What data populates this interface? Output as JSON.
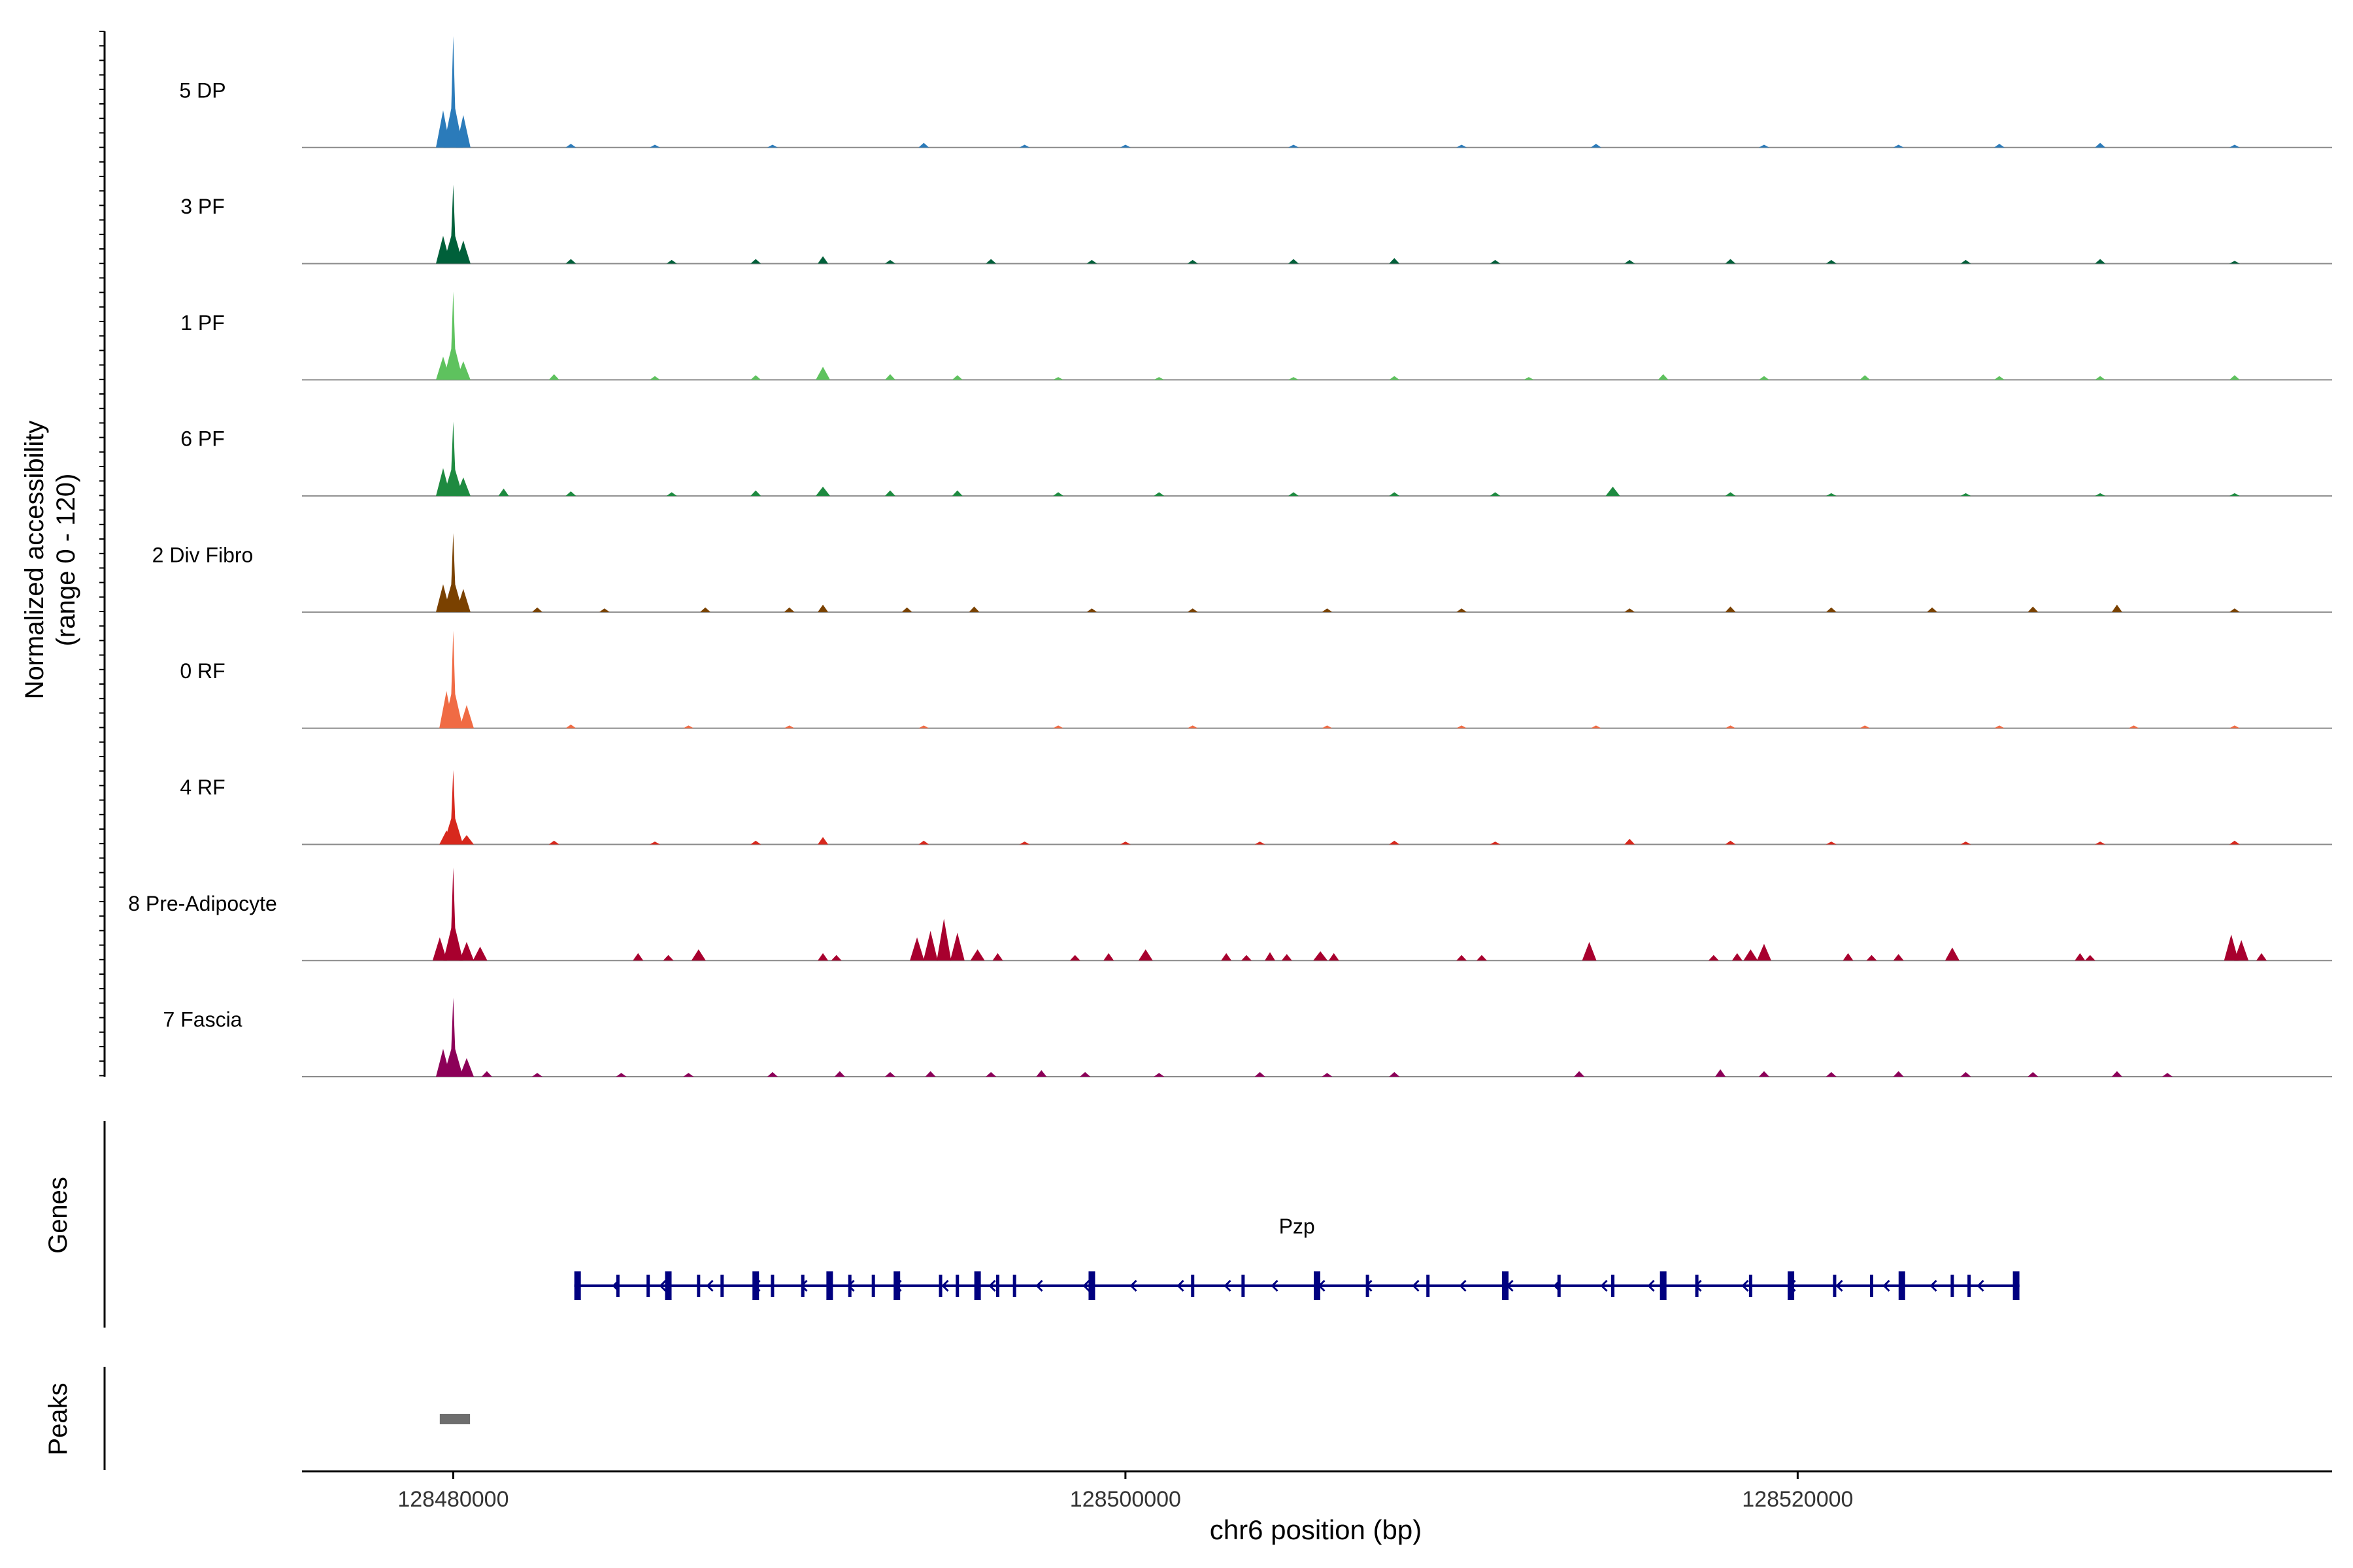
{
  "chart_data": {
    "type": "area",
    "title": "",
    "ylabel_line1": "Normalized accessibility",
    "ylabel_line2": "(range 0 - 120)",
    "xlabel": "chr6 position (bp)",
    "ylim": [
      0,
      120
    ],
    "xlim": [
      128475500,
      128535900
    ],
    "x_ticks": [
      128480000,
      128500000,
      128520000
    ],
    "x_tick_labels": [
      "128480000",
      "128500000",
      "128520000"
    ],
    "tracks": [
      {
        "name": "5 DP",
        "color": "#2b7bba",
        "main_peak": 120,
        "peaks": [
          [
            128480000,
            120
          ],
          [
            128479700,
            40
          ],
          [
            128480300,
            35
          ],
          [
            128483500,
            4
          ],
          [
            128486000,
            3
          ],
          [
            128489500,
            3
          ],
          [
            128494000,
            5
          ],
          [
            128497000,
            3
          ],
          [
            128500000,
            3
          ],
          [
            128505000,
            3
          ],
          [
            128510000,
            3
          ],
          [
            128514000,
            4
          ],
          [
            128519000,
            3
          ],
          [
            128523000,
            3
          ],
          [
            128526000,
            4
          ],
          [
            128529000,
            5
          ],
          [
            128533000,
            3
          ]
        ]
      },
      {
        "name": "3 PF",
        "color": "#00603a",
        "main_peak": 85,
        "peaks": [
          [
            128480000,
            85
          ],
          [
            128479700,
            30
          ],
          [
            128480300,
            25
          ],
          [
            128483500,
            5
          ],
          [
            128486500,
            4
          ],
          [
            128489000,
            5
          ],
          [
            128491000,
            8
          ],
          [
            128493000,
            4
          ],
          [
            128496000,
            5
          ],
          [
            128499000,
            4
          ],
          [
            128502000,
            4
          ],
          [
            128505000,
            5
          ],
          [
            128508000,
            6
          ],
          [
            128511000,
            4
          ],
          [
            128515000,
            4
          ],
          [
            128518000,
            5
          ],
          [
            128521000,
            4
          ],
          [
            128525000,
            4
          ],
          [
            128529000,
            5
          ],
          [
            128533000,
            3
          ]
        ]
      },
      {
        "name": "1 PF",
        "color": "#5ec25e",
        "main_peak": 95,
        "peaks": [
          [
            128480000,
            95
          ],
          [
            128479700,
            25
          ],
          [
            128480300,
            20
          ],
          [
            128483000,
            6
          ],
          [
            128486000,
            4
          ],
          [
            128489000,
            5
          ],
          [
            128491000,
            14
          ],
          [
            128493000,
            6
          ],
          [
            128495000,
            5
          ],
          [
            128498000,
            3
          ],
          [
            128501000,
            3
          ],
          [
            128505000,
            3
          ],
          [
            128508000,
            4
          ],
          [
            128512000,
            3
          ],
          [
            128516000,
            6
          ],
          [
            128519000,
            4
          ],
          [
            128522000,
            5
          ],
          [
            128526000,
            4
          ],
          [
            128529000,
            4
          ],
          [
            128533000,
            5
          ]
        ]
      },
      {
        "name": "6 PF",
        "color": "#1e8a40",
        "main_peak": 80,
        "peaks": [
          [
            128480000,
            80
          ],
          [
            128479700,
            30
          ],
          [
            128480300,
            20
          ],
          [
            128481500,
            8
          ],
          [
            128483500,
            5
          ],
          [
            128486500,
            4
          ],
          [
            128489000,
            6
          ],
          [
            128491000,
            10
          ],
          [
            128493000,
            6
          ],
          [
            128495000,
            6
          ],
          [
            128498000,
            4
          ],
          [
            128501000,
            4
          ],
          [
            128505000,
            4
          ],
          [
            128508000,
            4
          ],
          [
            128511000,
            4
          ],
          [
            128514500,
            10
          ],
          [
            128518000,
            4
          ],
          [
            128521000,
            3
          ],
          [
            128525000,
            3
          ],
          [
            128529000,
            3
          ],
          [
            128533000,
            3
          ]
        ]
      },
      {
        "name": "2 Div Fibro",
        "color": "#7a4100",
        "main_peak": 85,
        "peaks": [
          [
            128480000,
            85
          ],
          [
            128479700,
            30
          ],
          [
            128480300,
            25
          ],
          [
            128482500,
            5
          ],
          [
            128484500,
            4
          ],
          [
            128487500,
            5
          ],
          [
            128490000,
            5
          ],
          [
            128491000,
            8
          ],
          [
            128493500,
            5
          ],
          [
            128495500,
            6
          ],
          [
            128499000,
            4
          ],
          [
            128502000,
            4
          ],
          [
            128506000,
            4
          ],
          [
            128510000,
            4
          ],
          [
            128515000,
            4
          ],
          [
            128518000,
            6
          ],
          [
            128521000,
            5
          ],
          [
            128524000,
            5
          ],
          [
            128527000,
            6
          ],
          [
            128529500,
            8
          ],
          [
            128533000,
            4
          ]
        ]
      },
      {
        "name": "0 RF",
        "color": "#f06b44",
        "main_peak": 105,
        "peaks": [
          [
            128480000,
            105
          ],
          [
            128479800,
            40
          ],
          [
            128480400,
            25
          ],
          [
            128483500,
            4
          ],
          [
            128487000,
            3
          ],
          [
            128490000,
            3
          ],
          [
            128494000,
            3
          ],
          [
            128498000,
            3
          ],
          [
            128502000,
            3
          ],
          [
            128506000,
            3
          ],
          [
            128510000,
            3
          ],
          [
            128514000,
            3
          ],
          [
            128518000,
            3
          ],
          [
            128522000,
            3
          ],
          [
            128526000,
            3
          ],
          [
            128530000,
            3
          ],
          [
            128533000,
            3
          ]
        ]
      },
      {
        "name": "4 RF",
        "color": "#d7281d",
        "main_peak": 80,
        "peaks": [
          [
            128480000,
            80
          ],
          [
            128479800,
            15
          ],
          [
            128480400,
            10
          ],
          [
            128483000,
            4
          ],
          [
            128486000,
            3
          ],
          [
            128489000,
            4
          ],
          [
            128491000,
            8
          ],
          [
            128494000,
            4
          ],
          [
            128497000,
            3
          ],
          [
            128500000,
            3
          ],
          [
            128504000,
            3
          ],
          [
            128508000,
            4
          ],
          [
            128511000,
            3
          ],
          [
            128515000,
            6
          ],
          [
            128518000,
            4
          ],
          [
            128521000,
            3
          ],
          [
            128525000,
            3
          ],
          [
            128529000,
            3
          ],
          [
            128533000,
            4
          ]
        ]
      },
      {
        "name": "8 Pre-Adipocyte",
        "color": "#a8002e",
        "main_peak": 100,
        "peaks": [
          [
            128480000,
            100
          ],
          [
            128479600,
            25
          ],
          [
            128480400,
            20
          ],
          [
            128480800,
            15
          ],
          [
            128485500,
            8
          ],
          [
            128486400,
            6
          ],
          [
            128487300,
            12
          ],
          [
            128491000,
            8
          ],
          [
            128491400,
            6
          ],
          [
            128493800,
            25
          ],
          [
            128494200,
            32
          ],
          [
            128494600,
            45
          ],
          [
            128495000,
            30
          ],
          [
            128495600,
            12
          ],
          [
            128496200,
            8
          ],
          [
            128498500,
            6
          ],
          [
            128499500,
            8
          ],
          [
            128500600,
            12
          ],
          [
            128503000,
            8
          ],
          [
            128503600,
            6
          ],
          [
            128504300,
            9
          ],
          [
            128504800,
            7
          ],
          [
            128505800,
            10
          ],
          [
            128506200,
            8
          ],
          [
            128510000,
            6
          ],
          [
            128510600,
            6
          ],
          [
            128513800,
            20
          ],
          [
            128517500,
            6
          ],
          [
            128518200,
            8
          ],
          [
            128518600,
            12
          ],
          [
            128519000,
            18
          ],
          [
            128521500,
            8
          ],
          [
            128522200,
            6
          ],
          [
            128523000,
            7
          ],
          [
            128524600,
            14
          ],
          [
            128528400,
            8
          ],
          [
            128528700,
            6
          ],
          [
            128532900,
            28
          ],
          [
            128533200,
            22
          ],
          [
            128533800,
            8
          ]
        ]
      },
      {
        "name": "7 Fascia",
        "color": "#8c0058",
        "main_peak": 85,
        "peaks": [
          [
            128480000,
            85
          ],
          [
            128479700,
            30
          ],
          [
            128480400,
            20
          ],
          [
            128481000,
            6
          ],
          [
            128482500,
            4
          ],
          [
            128485000,
            4
          ],
          [
            128487000,
            4
          ],
          [
            128489500,
            5
          ],
          [
            128491500,
            6
          ],
          [
            128493000,
            5
          ],
          [
            128494200,
            6
          ],
          [
            128496000,
            5
          ],
          [
            128497500,
            7
          ],
          [
            128498800,
            5
          ],
          [
            128501000,
            4
          ],
          [
            128504000,
            5
          ],
          [
            128506000,
            4
          ],
          [
            128508000,
            5
          ],
          [
            128513500,
            6
          ],
          [
            128517700,
            8
          ],
          [
            128519000,
            6
          ],
          [
            128521000,
            5
          ],
          [
            128523000,
            6
          ],
          [
            128525000,
            5
          ],
          [
            128527000,
            5
          ],
          [
            128529500,
            6
          ],
          [
            128531000,
            4
          ]
        ]
      }
    ],
    "gene": {
      "name": "Pzp",
      "start": 128483600,
      "end": 128526600,
      "strand": "-",
      "color": "#000080",
      "exons": [
        128483700,
        128484900,
        128485800,
        128486400,
        128487300,
        128488000,
        128489000,
        128489500,
        128490400,
        128491200,
        128491800,
        128492500,
        128493200,
        128494500,
        128495000,
        128495600,
        128496200,
        128496700,
        128499000,
        128502000,
        128503500,
        128505700,
        128507200,
        128509000,
        128511300,
        128512900,
        128514500,
        128516000,
        128517000,
        128518600,
        128519800,
        128521100,
        128522200,
        128523100,
        128524600,
        128525100,
        128526500
      ]
    },
    "peak_regions": [
      {
        "start": 128479600,
        "end": 128480500,
        "color": "#6e6e6e"
      }
    ],
    "panel_labels": {
      "genes": "Genes",
      "peaks": "Peaks"
    }
  }
}
